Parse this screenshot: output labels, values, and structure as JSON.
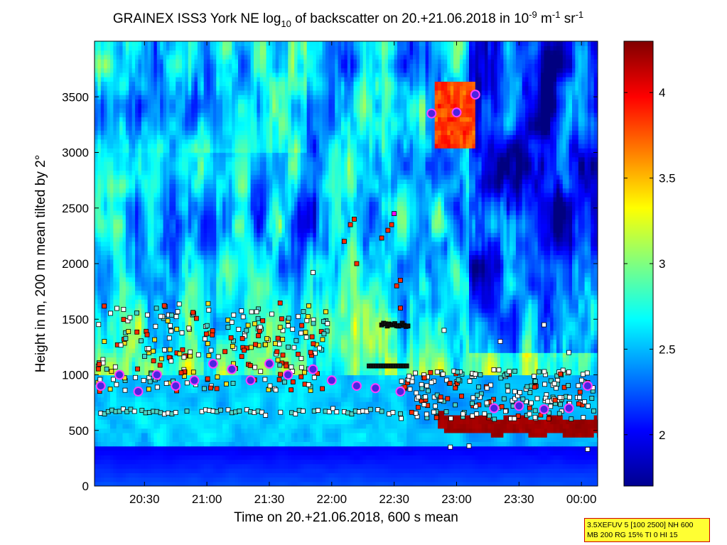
{
  "chart_data": {
    "type": "heatmap",
    "title": {
      "main": "GRAINEX ISS3 York NE log",
      "sub10": "10",
      "mid": " of backscatter on 20.+21.06.2018 in 10",
      "exp1": "-9",
      "unit_m": " m",
      "exp2": "-1",
      "unit_sr": " sr",
      "exp3": "-1"
    },
    "xlabel": "Time on 20.+21.06.2018, 600 s mean",
    "ylabel": "Height in m, 200 m mean tilted by 2°",
    "x_range_hours": [
      20.1,
      24.13
    ],
    "ylim": [
      0,
      4000
    ],
    "x_ticks": [
      {
        "value": 20.5,
        "label": "20:30"
      },
      {
        "value": 21.0,
        "label": "21:00"
      },
      {
        "value": 21.5,
        "label": "21:30"
      },
      {
        "value": 22.0,
        "label": "22:00"
      },
      {
        "value": 22.5,
        "label": "22:30"
      },
      {
        "value": 23.0,
        "label": "23:00"
      },
      {
        "value": 23.5,
        "label": "23:30"
      },
      {
        "value": 24.0,
        "label": "00:00"
      }
    ],
    "y_ticks": [
      0,
      500,
      1000,
      1500,
      2000,
      2500,
      3000,
      3500
    ],
    "y_tick_labels": [
      "0",
      "500",
      "1000",
      "1500",
      "2000",
      "2500",
      "3000",
      "3500"
    ],
    "colorbar": {
      "range": [
        1.7,
        4.3
      ],
      "ticks": [
        2,
        2.5,
        3,
        3.5,
        4
      ],
      "tick_labels": [
        "2",
        "2.5",
        "3",
        "3.5",
        "4"
      ],
      "colormap": "jet"
    },
    "features": {
      "cloud_layer_upper": {
        "x_range_hours": [
          22.83,
          23.15
        ],
        "height_m": [
          3050,
          3650
        ],
        "log10_value": 3.8
      },
      "boundary_layer_top_late": {
        "x_range_hours": [
          22.9,
          24.1
        ],
        "height_start_m": 650,
        "height_end_m": 600,
        "log10_value": 4.2
      },
      "ml_heights_circles": [
        {
          "t": 20.15,
          "h": 900
        },
        {
          "t": 20.3,
          "h": 1000
        },
        {
          "t": 20.45,
          "h": 850
        },
        {
          "t": 20.6,
          "h": 1000
        },
        {
          "t": 20.75,
          "h": 900
        },
        {
          "t": 20.9,
          "h": 950
        },
        {
          "t": 21.05,
          "h": 1100
        },
        {
          "t": 21.2,
          "h": 1050
        },
        {
          "t": 21.35,
          "h": 950
        },
        {
          "t": 21.5,
          "h": 1100
        },
        {
          "t": 21.65,
          "h": 1000
        },
        {
          "t": 21.85,
          "h": 1050
        },
        {
          "t": 22.0,
          "h": 950
        },
        {
          "t": 22.2,
          "h": 900
        },
        {
          "t": 22.35,
          "h": 880
        },
        {
          "t": 22.55,
          "h": 850
        },
        {
          "t": 22.8,
          "h": 3350
        },
        {
          "t": 23.0,
          "h": 3360
        },
        {
          "t": 23.15,
          "h": 3520
        },
        {
          "t": 23.3,
          "h": 700
        },
        {
          "t": 23.5,
          "h": 720
        },
        {
          "t": 23.7,
          "h": 690
        },
        {
          "t": 23.9,
          "h": 700
        },
        {
          "t": 24.05,
          "h": 900
        }
      ]
    }
  },
  "legend_box": {
    "line1": "3.5XEFUV 5 [100 2500] NH 600",
    "line2": "MB 200 RG 15% TI 0 HI 15"
  }
}
